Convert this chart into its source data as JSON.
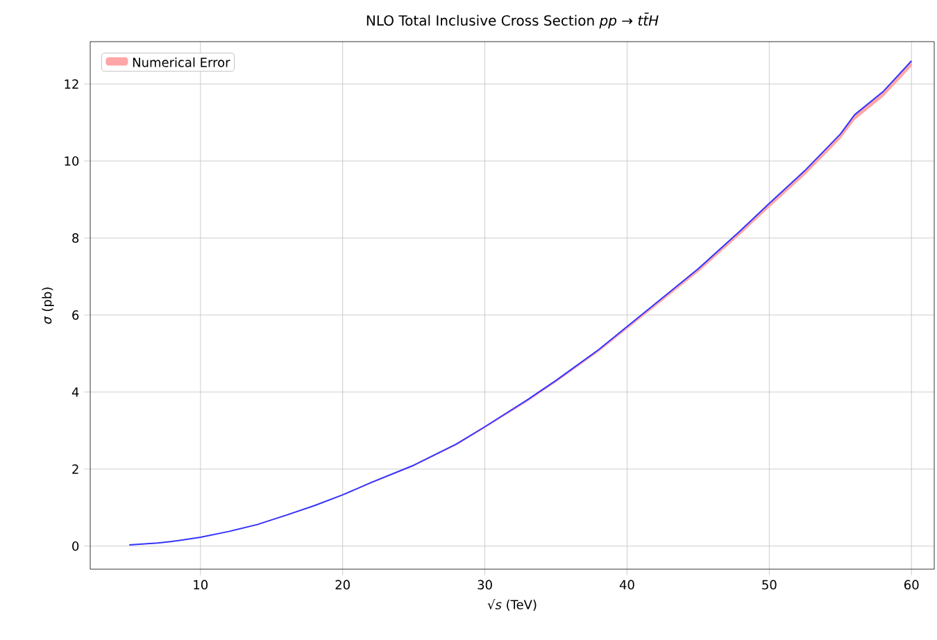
{
  "chart_data": {
    "type": "line",
    "title": "NLO Total Inclusive Cross Section *pp* → *tt̄H*",
    "xlabel": "√*s* (TeV)",
    "ylabel": "*σ* (pb)",
    "x": [
      5,
      7,
      8,
      10,
      12,
      14,
      16,
      18,
      20,
      22,
      25,
      28,
      30,
      33,
      35,
      38,
      40,
      42,
      45,
      48,
      50,
      52.5,
      55,
      56,
      58,
      60
    ],
    "series": [
      {
        "color": "#3333ff",
        "values": [
          0.03,
          0.08,
          0.12,
          0.23,
          0.38,
          0.56,
          0.8,
          1.05,
          1.33,
          1.65,
          2.1,
          2.65,
          3.1,
          3.8,
          4.3,
          5.1,
          5.7,
          6.3,
          7.2,
          8.2,
          8.9,
          9.75,
          10.7,
          11.2,
          11.8,
          12.6
        ],
        "lower": [
          0.03,
          0.08,
          0.12,
          0.23,
          0.38,
          0.55,
          0.79,
          1.04,
          1.32,
          1.63,
          2.08,
          2.62,
          3.07,
          3.76,
          4.26,
          5.05,
          5.64,
          6.23,
          7.12,
          8.11,
          8.8,
          9.64,
          10.58,
          11.07,
          11.67,
          12.46
        ],
        "upper": [
          0.03,
          0.08,
          0.12,
          0.23,
          0.38,
          0.56,
          0.8,
          1.05,
          1.33,
          1.65,
          2.1,
          2.65,
          3.1,
          3.8,
          4.3,
          5.1,
          5.7,
          6.3,
          7.2,
          8.2,
          8.9,
          9.75,
          10.7,
          11.2,
          11.8,
          12.6
        ]
      }
    ],
    "annotations": [
      "Numerical Error"
    ],
    "xlim": [
      2.25,
      61.6
    ],
    "ylim": [
      -0.6,
      13.1
    ],
    "xticks": [
      10,
      20,
      30,
      40,
      50,
      60
    ],
    "yticks": [
      0,
      2,
      4,
      6,
      8,
      10,
      12
    ],
    "grid": true,
    "line_style": "solid",
    "marker": "none"
  }
}
